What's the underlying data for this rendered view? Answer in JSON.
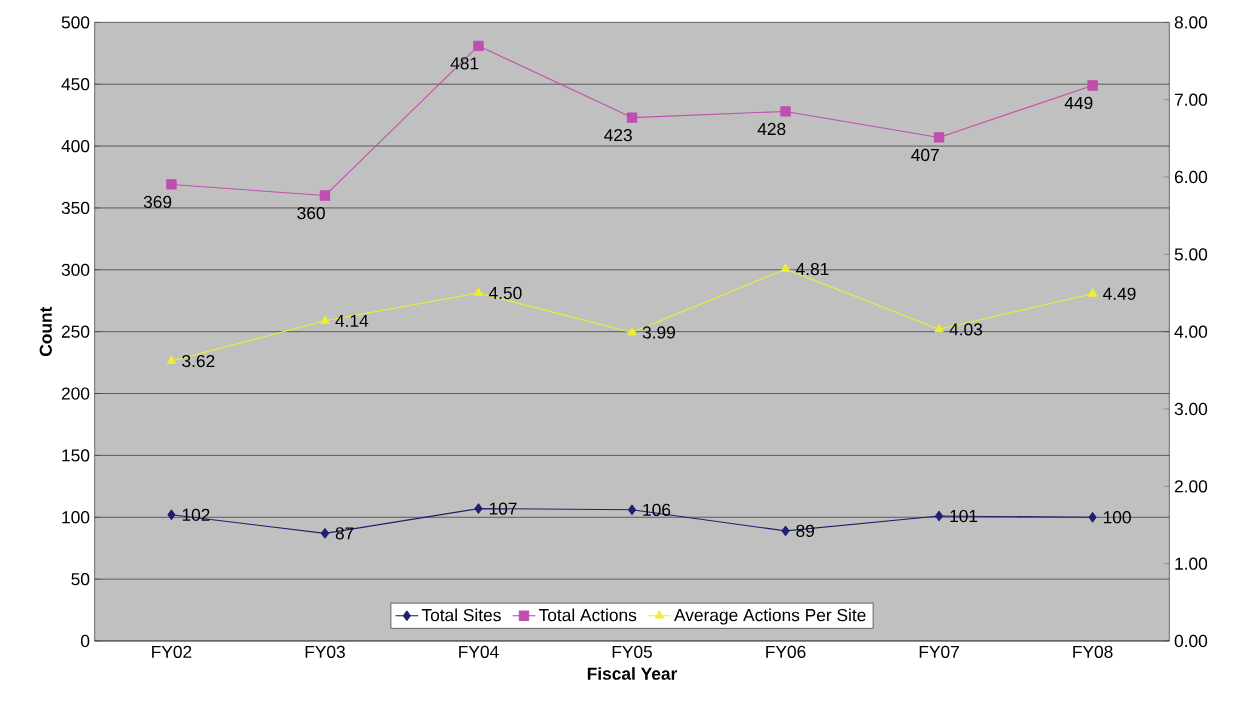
{
  "chart_data": {
    "type": "line",
    "xlabel": "Fiscal Year",
    "ylabel": "Count",
    "categories": [
      "FY02",
      "FY03",
      "FY04",
      "FY05",
      "FY06",
      "FY07",
      "FY08"
    ],
    "series": [
      {
        "name": "Total Sites",
        "color": "#1f1f70",
        "marker": "diamond",
        "values": [
          102,
          87,
          107,
          106,
          89,
          101,
          100
        ],
        "value_labels": [
          "102",
          "87",
          "107",
          "106",
          "89",
          "101",
          "100"
        ]
      },
      {
        "name": "Total Actions",
        "color": "#bf4faf",
        "marker": "square",
        "values": [
          369,
          360,
          481,
          423,
          428,
          407,
          449
        ],
        "value_labels": [
          "369",
          "360",
          "481",
          "423",
          "428",
          "407",
          "449"
        ]
      },
      {
        "name": "Average Actions Per Site",
        "color": "#eeee30",
        "marker": "triangle",
        "axis": "y2",
        "values": [
          3.62,
          4.14,
          4.5,
          3.99,
          4.81,
          4.03,
          4.49
        ],
        "value_labels": [
          "3.62",
          "4.14",
          "4.50",
          "3.99",
          "4.81",
          "4.03",
          "4.49"
        ]
      }
    ],
    "ylim": [
      0,
      500
    ],
    "yticks": [
      0,
      50,
      100,
      150,
      200,
      250,
      300,
      350,
      400,
      450,
      500
    ],
    "y2lim": [
      0,
      8
    ],
    "y2ticks": [
      {
        "value": 0,
        "label": "0.00"
      },
      {
        "value": 1,
        "label": "1.00"
      },
      {
        "value": 2,
        "label": "2.00"
      },
      {
        "value": 3,
        "label": "3.00"
      },
      {
        "value": 4,
        "label": "4.00"
      },
      {
        "value": 5,
        "label": "5.00"
      },
      {
        "value": 6,
        "label": "6.00"
      },
      {
        "value": 7,
        "label": "7.00"
      },
      {
        "value": 8,
        "label": "8.00"
      }
    ],
    "grid": "y",
    "legend": "bottom"
  }
}
